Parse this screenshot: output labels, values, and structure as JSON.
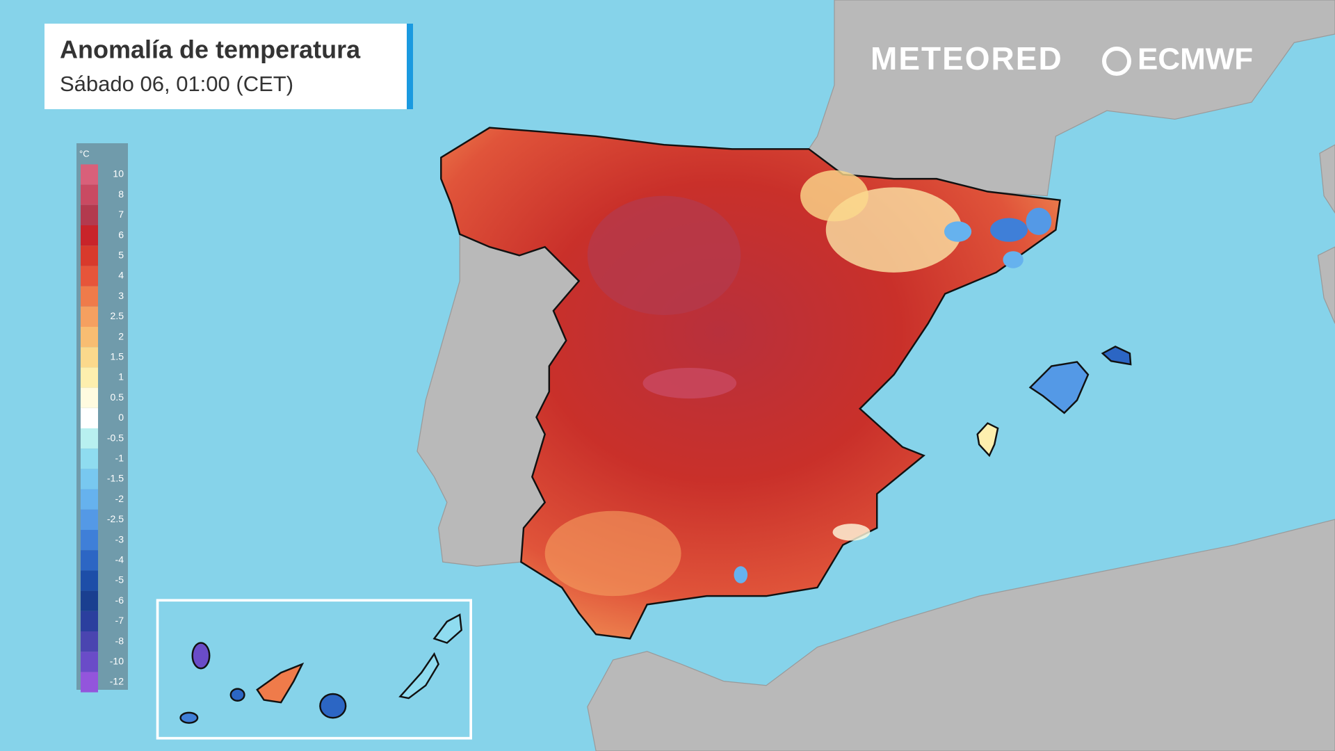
{
  "header": {
    "title": "Anomalía de temperatura",
    "subtitle": "Sábado 06, 01:00 (CET)"
  },
  "brands": {
    "meteored": "METEORED",
    "ecmwf": "ECMWF"
  },
  "legend": {
    "unit": "°C",
    "items": [
      {
        "value": 10,
        "color": "#d9607a"
      },
      {
        "value": 8,
        "color": "#c94a62"
      },
      {
        "value": 7,
        "color": "#b33a4e"
      },
      {
        "value": 6,
        "color": "#c8242a"
      },
      {
        "value": 5,
        "color": "#d83a2c"
      },
      {
        "value": 4,
        "color": "#e6553a"
      },
      {
        "value": 3,
        "color": "#ef7b4a"
      },
      {
        "value": 2.5,
        "color": "#f5a060"
      },
      {
        "value": 2,
        "color": "#f8bd72"
      },
      {
        "value": 1.5,
        "color": "#fbd98c"
      },
      {
        "value": 1,
        "color": "#fdefae"
      },
      {
        "value": 0.5,
        "color": "#fffbe0"
      },
      {
        "value": 0,
        "color": "#ffffff"
      },
      {
        "value": -0.5,
        "color": "#b8f0f0"
      },
      {
        "value": -1,
        "color": "#8fdcf0"
      },
      {
        "value": -1.5,
        "color": "#78c8f0"
      },
      {
        "value": -2,
        "color": "#66b2ee"
      },
      {
        "value": -2.5,
        "color": "#5499e6"
      },
      {
        "value": -3,
        "color": "#3f7fd8"
      },
      {
        "value": -4,
        "color": "#2c66c4"
      },
      {
        "value": -5,
        "color": "#1d4ea8"
      },
      {
        "value": -6,
        "color": "#1a3f90"
      },
      {
        "value": -7,
        "color": "#2b3f9e"
      },
      {
        "value": -8,
        "color": "#4a45b0"
      },
      {
        "value": -10,
        "color": "#6a4cc8"
      },
      {
        "value": -12,
        "color": "#9355dc"
      }
    ]
  }
}
